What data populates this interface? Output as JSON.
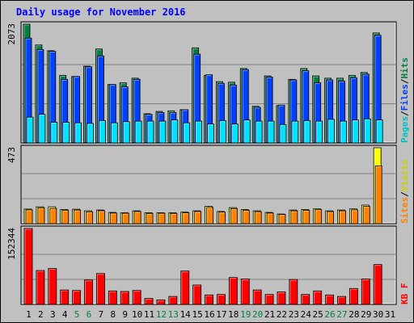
{
  "chart_data": {
    "type": "bar",
    "title": "Daily usage for November 2016",
    "categories": [
      "1",
      "2",
      "3",
      "4",
      "5",
      "6",
      "7",
      "8",
      "9",
      "10",
      "11",
      "12",
      "13",
      "14",
      "15",
      "16",
      "17",
      "18",
      "19",
      "20",
      "21",
      "22",
      "23",
      "24",
      "25",
      "26",
      "27",
      "28",
      "29",
      "30",
      "31"
    ],
    "weekend_days": [
      "5",
      "6",
      "12",
      "13",
      "19",
      "20",
      "26",
      "27"
    ],
    "panels": [
      {
        "id": "hits-files-pages",
        "max_label": "2073",
        "ymax": 2073,
        "legend": [
          "Pages",
          "/",
          "Files",
          "/",
          "Hits"
        ],
        "series": [
          {
            "name": "Hits",
            "color": "#008040",
            "values": [
              2073,
              1710,
              1610,
              1180,
              1160,
              1340,
              1640,
              1020,
              1050,
              1130,
              510,
              550,
              560,
              580,
              1660,
              1180,
              1070,
              1060,
              1300,
              640,
              1170,
              650,
              1110,
              1300,
              1170,
              1130,
              1130,
              1180,
              1230,
              1920,
              0
            ]
          },
          {
            "name": "Files",
            "color": "#0040ff",
            "values": [
              1830,
              1630,
              1600,
              1110,
              1160,
              1330,
              1520,
              1020,
              980,
              1110,
              500,
              530,
              530,
              580,
              1550,
              1190,
              1040,
              1010,
              1280,
              620,
              1150,
              660,
              1100,
              1260,
              1050,
              1100,
              1080,
              1140,
              1200,
              1880,
              0
            ]
          },
          {
            "name": "Pages",
            "color": "#00e0ff",
            "values": [
              450,
              500,
              360,
              360,
              350,
              340,
              390,
              350,
              370,
              380,
              380,
              380,
              400,
              350,
              380,
              330,
              390,
              330,
              400,
              380,
              380,
              320,
              380,
              390,
              380,
              410,
              380,
              400,
              420,
              400,
              0
            ]
          }
        ]
      },
      {
        "id": "visits-sites",
        "max_label": "473",
        "ymax": 473,
        "legend": [
          "Sites",
          "/",
          "Visits"
        ],
        "series": [
          {
            "name": "Visits",
            "color": "#ffff00",
            "values": [
              91,
              105,
              105,
              88,
              90,
              80,
              85,
              70,
              68,
              80,
              68,
              68,
              68,
              72,
              80,
              108,
              76,
              100,
              88,
              80,
              70,
              60,
              85,
              88,
              92,
              80,
              85,
              92,
              116,
              473,
              0
            ]
          },
          {
            "name": "Sites",
            "color": "#ff8000",
            "values": [
              86,
              99,
              95,
              84,
              85,
              74,
              81,
              66,
              65,
              76,
              64,
              65,
              64,
              68,
              76,
              101,
              72,
              94,
              83,
              75,
              66,
              57,
              80,
              83,
              87,
              75,
              80,
              86,
              108,
              360,
              0
            ]
          }
        ]
      },
      {
        "id": "kbytes",
        "max_label": "152344",
        "ymax": 152344,
        "legend": [
          "KB",
          "F"
        ],
        "series": [
          {
            "name": "KB F",
            "color": "#ff0000",
            "values": [
              152344,
              68000,
              72000,
              29000,
              28000,
              49000,
              62000,
              27000,
              26000,
              28000,
              12000,
              9000,
              16000,
              67000,
              39000,
              19000,
              20000,
              54000,
              51000,
              29000,
              20000,
              25000,
              50000,
              20000,
              27000,
              19000,
              16000,
              32000,
              51000,
              80000,
              0
            ]
          }
        ]
      }
    ]
  }
}
